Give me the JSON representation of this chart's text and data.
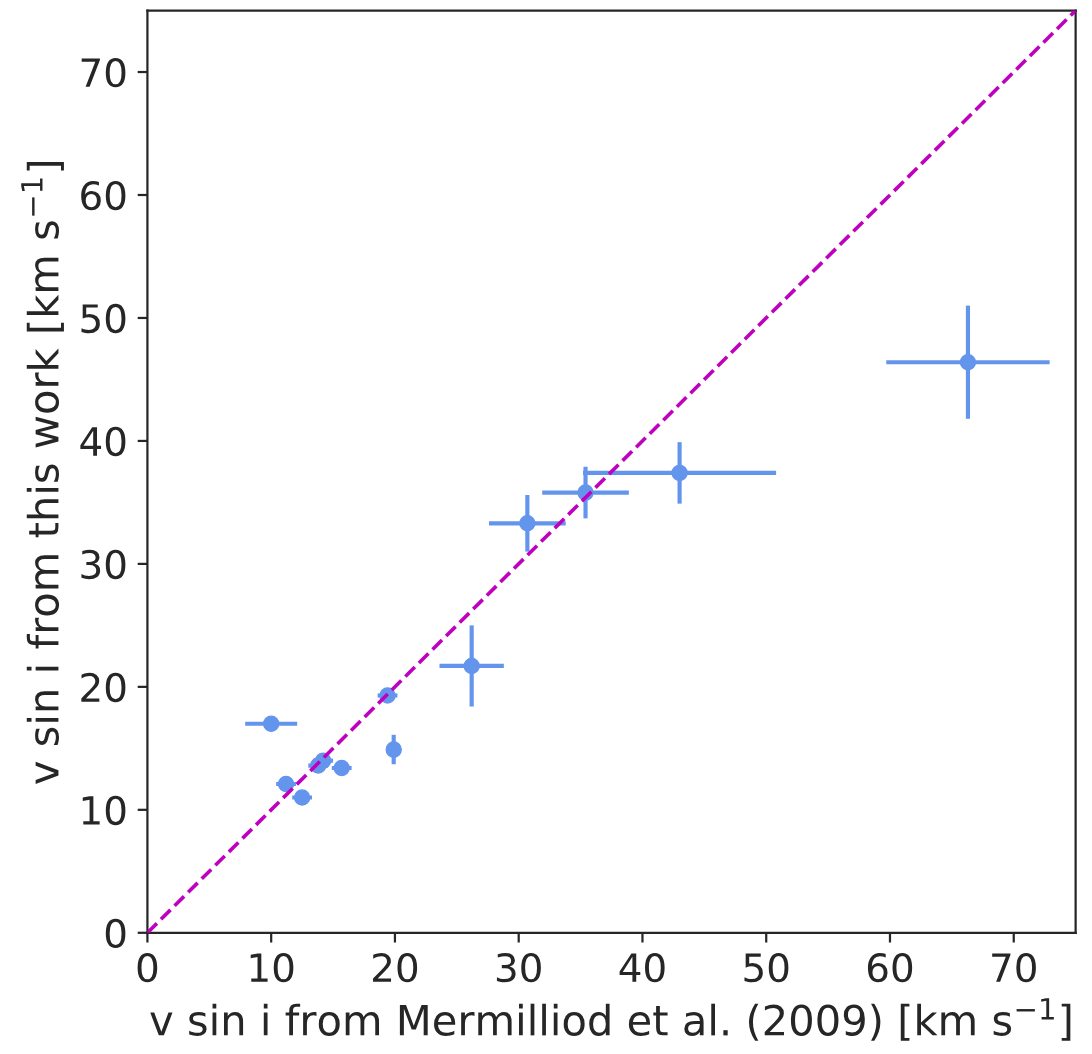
{
  "chart_data": {
    "type": "scatter",
    "xlabel": "v sin i from Mermilliod et al. (2009) [km s$^{−1}$]",
    "ylabel": "v sin i from this work [km s$^{−1}$]",
    "xlim": [
      0,
      75
    ],
    "ylim": [
      0,
      75
    ],
    "xticks": [
      0,
      10,
      20,
      30,
      40,
      50,
      60,
      70
    ],
    "yticks": [
      0,
      10,
      20,
      30,
      40,
      50,
      60,
      70
    ],
    "grid": false,
    "legend": false,
    "series": [
      {
        "color": "#6495ed",
        "marker": "circle",
        "x": [
          10.0,
          11.2,
          12.5,
          13.8,
          14.2,
          15.7,
          19.4,
          19.9,
          26.2,
          30.7,
          35.4,
          43.0,
          66.3
        ],
        "values": [
          17.0,
          12.1,
          11.0,
          13.6,
          14.0,
          13.4,
          19.3,
          14.9,
          21.7,
          33.3,
          35.8,
          37.4,
          46.4
        ],
        "xerrors": [
          2.1,
          0.8,
          0.8,
          0.8,
          0.8,
          0.8,
          0.8,
          0.3,
          2.6,
          3.1,
          3.5,
          7.8,
          6.6
        ],
        "errors": [
          0.4,
          0.4,
          0.4,
          0.4,
          0.4,
          0.4,
          0.4,
          1.2,
          3.3,
          2.3,
          2.1,
          2.5,
          4.6
        ]
      },
      {
        "type": "line",
        "color": "#bf00bf",
        "line_style": "dashed",
        "marker": "none",
        "x": [
          0,
          75
        ],
        "values": [
          0,
          75
        ]
      }
    ]
  }
}
